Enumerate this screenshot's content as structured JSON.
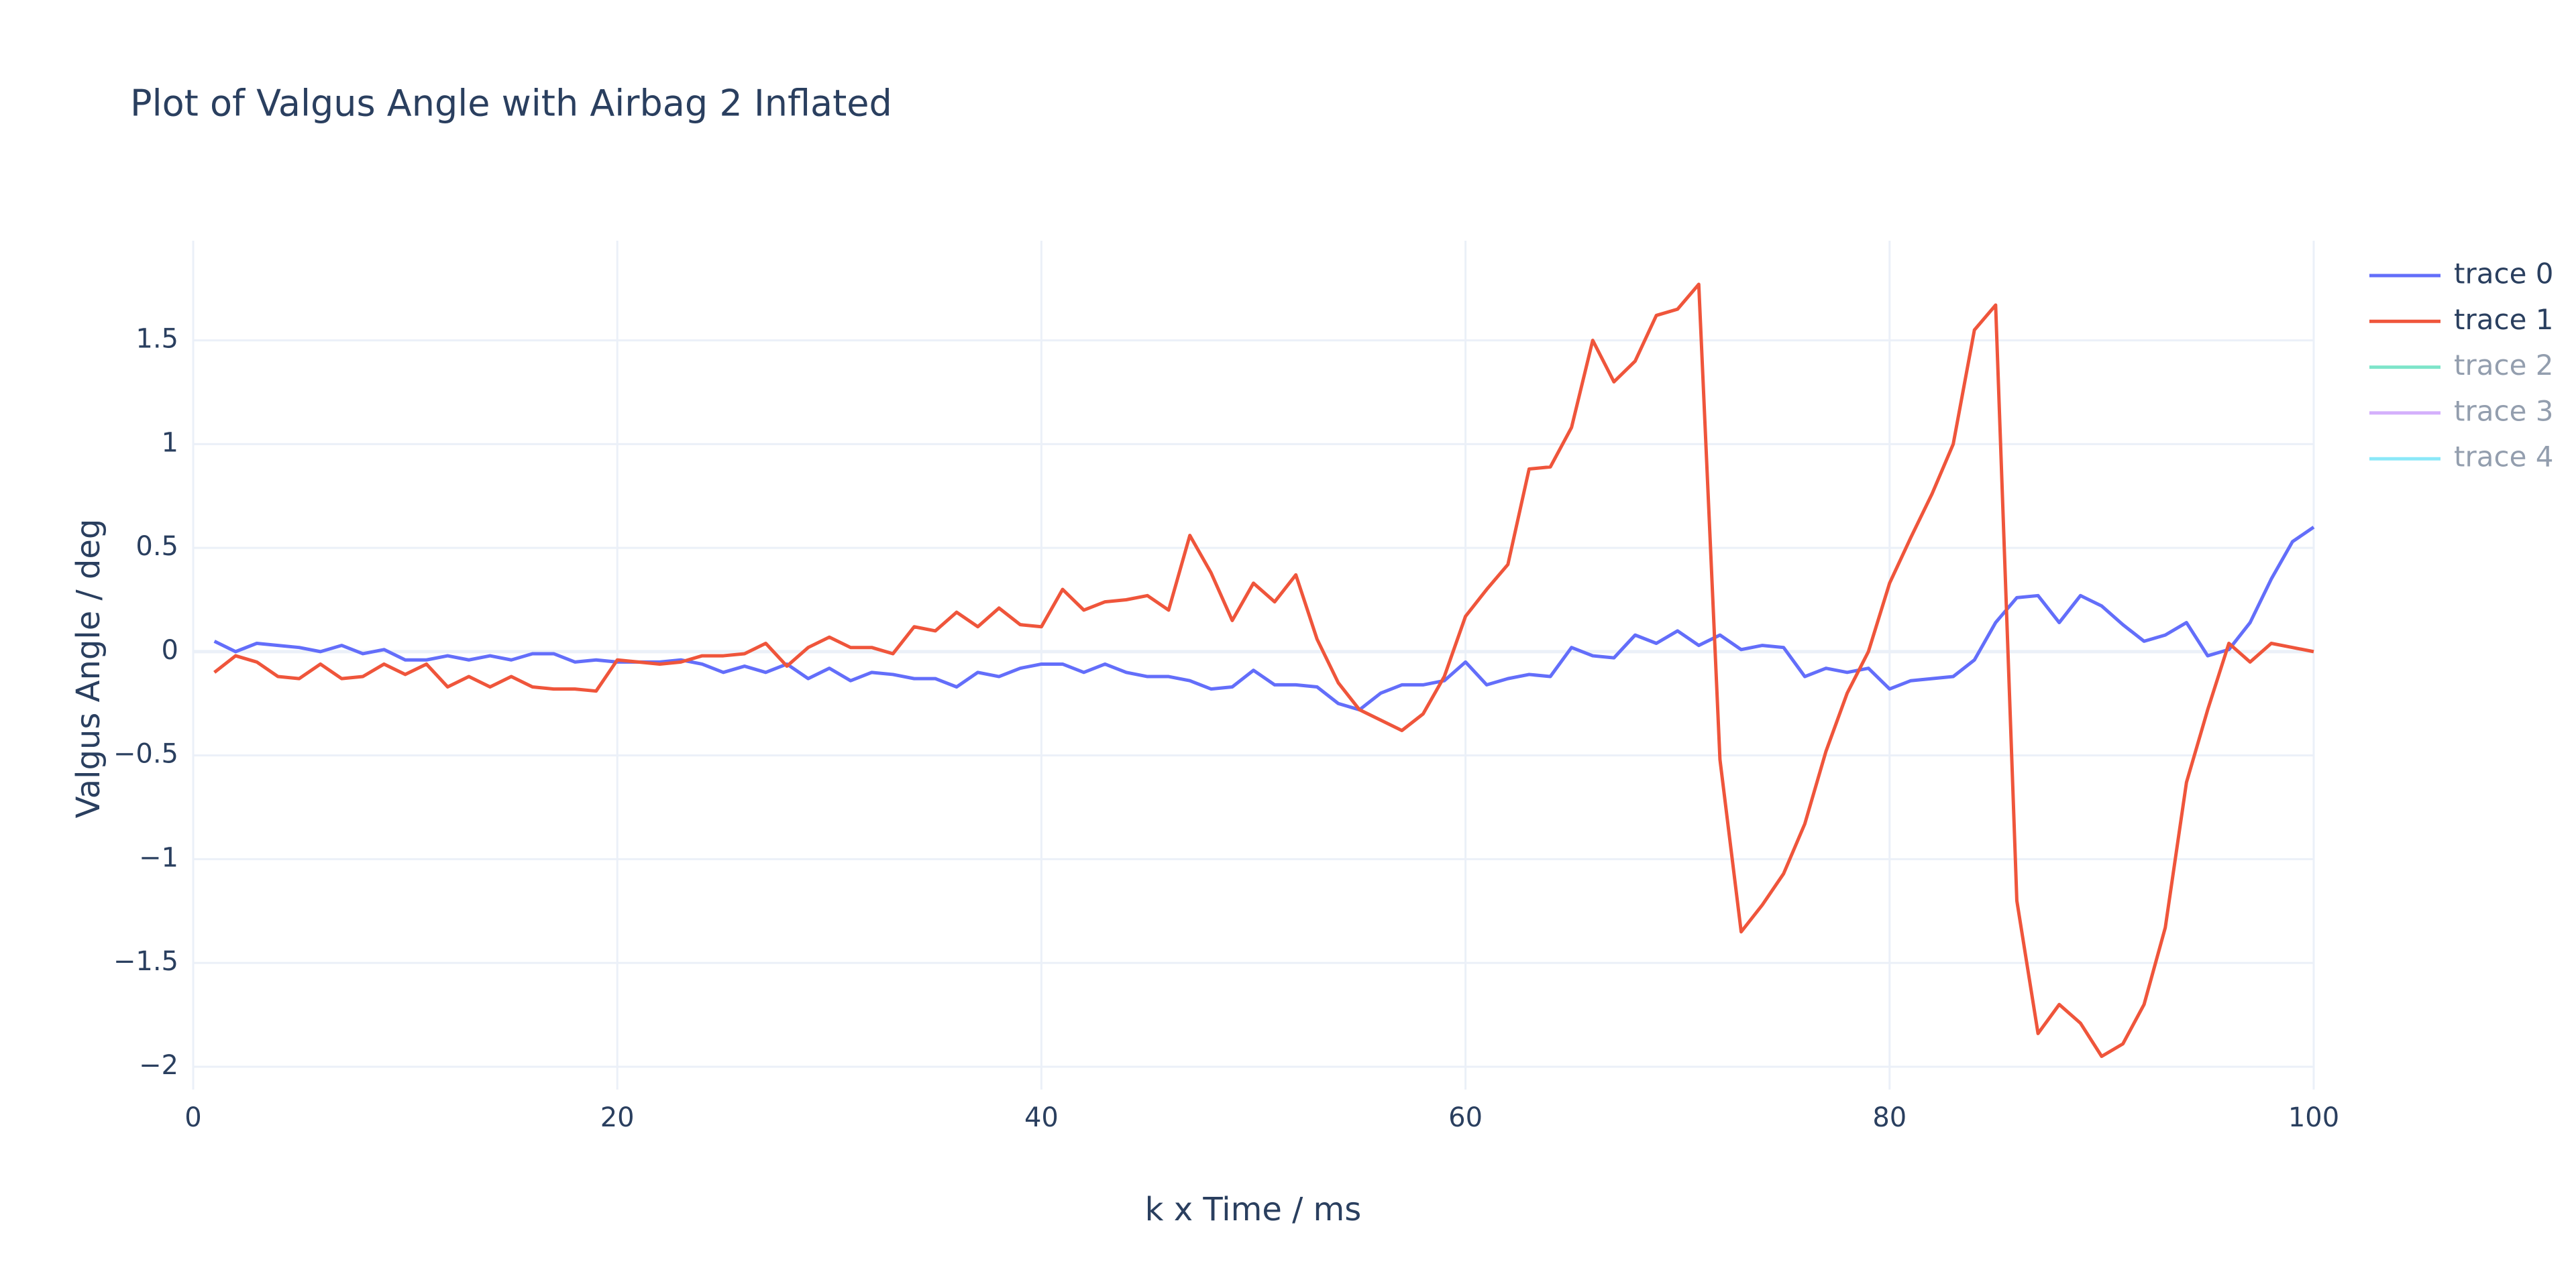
{
  "chart_data": {
    "type": "line",
    "title": "Plot of Valgus Angle with Airbag 2 Inflated",
    "x_label": "k x Time / ms",
    "y_label": "Valgus Angle / deg",
    "x": [
      1,
      2,
      3,
      4,
      5,
      6,
      7,
      8,
      9,
      10,
      11,
      12,
      13,
      14,
      15,
      16,
      17,
      18,
      19,
      20,
      21,
      22,
      23,
      24,
      25,
      26,
      27,
      28,
      29,
      30,
      31,
      32,
      33,
      34,
      35,
      36,
      37,
      38,
      39,
      40,
      41,
      42,
      43,
      44,
      45,
      46,
      47,
      48,
      49,
      50,
      51,
      52,
      53,
      54,
      55,
      56,
      57,
      58,
      59,
      60,
      61,
      62,
      63,
      64,
      65,
      66,
      67,
      68,
      69,
      70,
      71,
      72,
      73,
      74,
      75,
      76,
      77,
      78,
      79,
      80,
      81,
      82,
      83,
      84,
      85,
      86,
      87,
      88,
      89,
      90,
      91,
      92,
      93,
      94,
      95,
      96,
      97,
      98,
      99,
      100
    ],
    "series": [
      {
        "name": "trace 0",
        "color": "#636efa",
        "values": [
          0.05,
          0,
          0.04,
          0.03,
          0.02,
          0,
          0.03,
          -0.01,
          0.01,
          -0.04,
          -0.04,
          -0.02,
          -0.04,
          -0.02,
          -0.04,
          -0.01,
          -0.01,
          -0.05,
          -0.04,
          -0.05,
          -0.05,
          -0.05,
          -0.04,
          -0.06,
          -0.1,
          -0.07,
          -0.1,
          -0.06,
          -0.13,
          -0.08,
          -0.14,
          -0.1,
          -0.11,
          -0.13,
          -0.13,
          -0.17,
          -0.1,
          -0.12,
          -0.08,
          -0.06,
          -0.06,
          -0.1,
          -0.06,
          -0.1,
          -0.12,
          -0.12,
          -0.14,
          -0.18,
          -0.17,
          -0.09,
          -0.16,
          -0.16,
          -0.17,
          -0.25,
          -0.28,
          -0.2,
          -0.16,
          -0.16,
          -0.14,
          -0.05,
          -0.16,
          -0.13,
          -0.11,
          -0.12,
          0.02,
          -0.02,
          -0.03,
          0.08,
          0.04,
          0.1,
          0.03,
          0.08,
          0.01,
          0.03,
          0.02,
          -0.12,
          -0.08,
          -0.1,
          -0.08,
          -0.18,
          -0.14,
          -0.13,
          -0.12,
          -0.04,
          0.14,
          0.26,
          0.27,
          0.14,
          0.27,
          0.22,
          0.13,
          0.05,
          0.08,
          0.14,
          -0.02,
          0.01,
          0.14,
          0.35,
          0.53,
          0.6
        ]
      },
      {
        "name": "trace 1",
        "color": "#EF553B",
        "values": [
          -0.1,
          -0.02,
          -0.05,
          -0.12,
          -0.13,
          -0.06,
          -0.13,
          -0.12,
          -0.06,
          -0.11,
          -0.06,
          -0.17,
          -0.12,
          -0.17,
          -0.12,
          -0.17,
          -0.18,
          -0.18,
          -0.19,
          -0.04,
          -0.05,
          -0.06,
          -0.05,
          -0.02,
          -0.02,
          -0.01,
          0.04,
          -0.07,
          0.02,
          0.07,
          0.02,
          0.02,
          -0.01,
          0.12,
          0.1,
          0.19,
          0.12,
          0.21,
          0.13,
          0.12,
          0.3,
          0.2,
          0.24,
          0.25,
          0.27,
          0.2,
          0.56,
          0.38,
          0.15,
          0.33,
          0.24,
          0.37,
          0.06,
          -0.15,
          -0.28,
          -0.33,
          -0.38,
          -0.3,
          -0.12,
          0.17,
          0.3,
          0.42,
          0.88,
          0.89,
          1.08,
          1.5,
          1.3,
          1.4,
          1.62,
          1.65,
          1.77,
          -0.52,
          -1.35,
          -1.22,
          -1.07,
          -0.83,
          -0.48,
          -0.2,
          0,
          0.33,
          0.55,
          0.76,
          1,
          1.55,
          1.67,
          -1.2,
          -1.84,
          -1.7,
          -1.79,
          -1.95,
          -1.89,
          -1.7,
          -1.33,
          -0.63,
          -0.28,
          0.04,
          -0.05,
          0.04,
          0.02,
          0
        ]
      },
      {
        "name": "trace 2",
        "color": "#00cc96",
        "visible": "legendonly"
      },
      {
        "name": "trace 3",
        "color": "#ab63fa",
        "visible": "legendonly"
      },
      {
        "name": "trace 4",
        "color": "#19d3f3",
        "visible": "legendonly"
      }
    ],
    "xlim": [
      0,
      100
    ],
    "xticks": [
      0,
      20,
      40,
      60,
      80,
      100
    ],
    "ylim": [
      -2.11,
      1.98
    ],
    "yticks": [
      {
        "value": -2,
        "label": "−2"
      },
      {
        "value": -1.5,
        "label": "−1.5"
      },
      {
        "value": -1,
        "label": "−1"
      },
      {
        "value": -0.5,
        "label": "−0.5"
      },
      0,
      0.5,
      1,
      1.5
    ],
    "grid": true,
    "legend": "right"
  }
}
